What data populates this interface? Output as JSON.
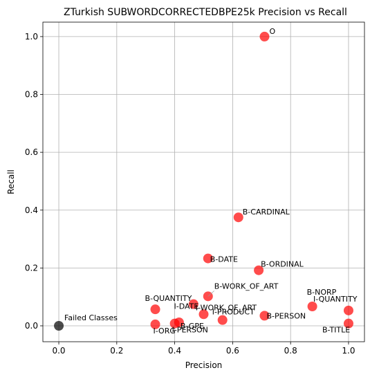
{
  "chart_data": {
    "type": "scatter",
    "title": "ZTurkish SUBWORDCORRECTEDBPE25k Precision vs Recall",
    "xlabel": "Precision",
    "ylabel": "Recall",
    "xlim": [
      -0.055,
      1.055
    ],
    "ylim": [
      -0.055,
      1.05
    ],
    "xticks": [
      "0.0",
      "0.2",
      "0.4",
      "0.6",
      "0.8",
      "1.0"
    ],
    "yticks": [
      "0.0",
      "0.2",
      "0.4",
      "0.6",
      "0.8",
      "1.0"
    ],
    "grid": true,
    "colors": {
      "point": "#ff0000",
      "failed": "#000000"
    },
    "points": [
      {
        "label": "O",
        "x": 0.71,
        "y": 1.0
      },
      {
        "label": "B-CARDINAL",
        "x": 0.62,
        "y": 0.375
      },
      {
        "label": "B-DATE",
        "x": 0.515,
        "y": 0.233
      },
      {
        "label": "B-ORDINAL",
        "x": 0.69,
        "y": 0.192
      },
      {
        "label": "B-WORK_OF_ART",
        "x": 0.515,
        "y": 0.102
      },
      {
        "label": "I-WORK_OF_ART",
        "x": 0.465,
        "y": 0.075
      },
      {
        "label": "B-QUANTITY",
        "x": 0.333,
        "y": 0.057
      },
      {
        "label": "I-DATE",
        "x": 0.5,
        "y": 0.04
      },
      {
        "label": "I-PRODUCT",
        "x": 0.565,
        "y": 0.02
      },
      {
        "label": "B-GPE",
        "x": 0.415,
        "y": 0.012
      },
      {
        "label": "I-ORG",
        "x": 0.333,
        "y": 0.005
      },
      {
        "label": "I-PERSON",
        "x": 0.4,
        "y": 0.008
      },
      {
        "label": "B-PERSON",
        "x": 0.71,
        "y": 0.035
      },
      {
        "label": "B-NORP",
        "x": 0.875,
        "y": 0.067
      },
      {
        "label": "I-QUANTITY",
        "x": 1.0,
        "y": 0.053
      },
      {
        "label": "B-TITLE",
        "x": 1.0,
        "y": 0.008
      }
    ],
    "failed": {
      "label": "Failed Classes",
      "x": 0.0,
      "y": 0.0
    }
  }
}
